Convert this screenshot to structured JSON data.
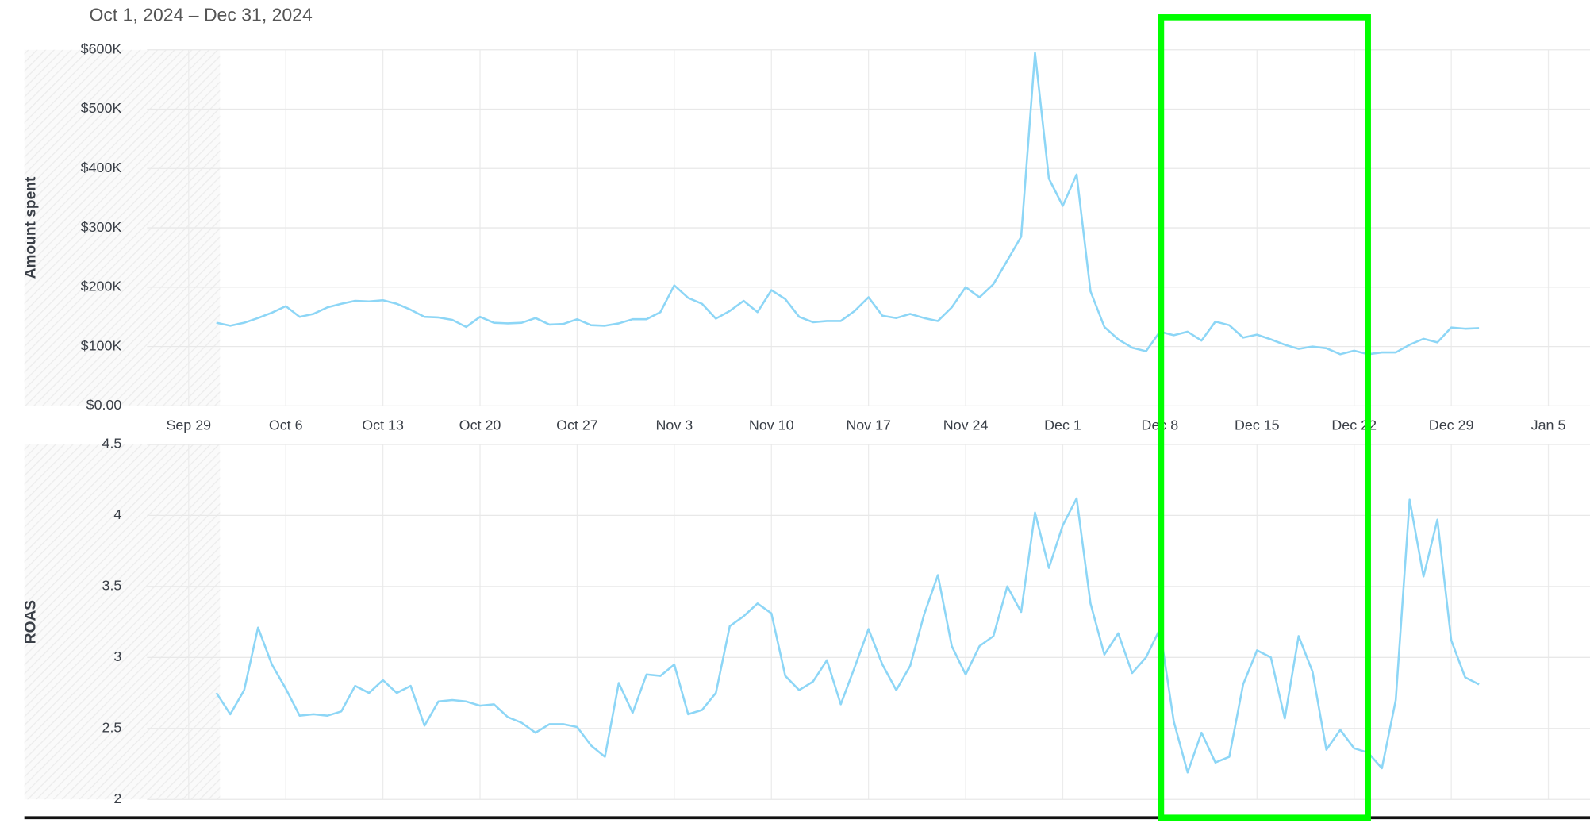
{
  "date_range": "Oct 1, 2024 – Dec 31, 2024",
  "chart_data": [
    {
      "type": "line",
      "y_label": "Amount spent",
      "x": [
        "2024-10-01",
        "2024-10-02",
        "2024-10-03",
        "2024-10-04",
        "2024-10-05",
        "2024-10-06",
        "2024-10-07",
        "2024-10-08",
        "2024-10-09",
        "2024-10-10",
        "2024-10-11",
        "2024-10-12",
        "2024-10-13",
        "2024-10-14",
        "2024-10-15",
        "2024-10-16",
        "2024-10-17",
        "2024-10-18",
        "2024-10-19",
        "2024-10-20",
        "2024-10-21",
        "2024-10-22",
        "2024-10-23",
        "2024-10-24",
        "2024-10-25",
        "2024-10-26",
        "2024-10-27",
        "2024-10-28",
        "2024-10-29",
        "2024-10-30",
        "2024-10-31",
        "2024-11-01",
        "2024-11-02",
        "2024-11-03",
        "2024-11-04",
        "2024-11-05",
        "2024-11-06",
        "2024-11-07",
        "2024-11-08",
        "2024-11-09",
        "2024-11-10",
        "2024-11-11",
        "2024-11-12",
        "2024-11-13",
        "2024-11-14",
        "2024-11-15",
        "2024-11-16",
        "2024-11-17",
        "2024-11-18",
        "2024-11-19",
        "2024-11-20",
        "2024-11-21",
        "2024-11-22",
        "2024-11-23",
        "2024-11-24",
        "2024-11-25",
        "2024-11-26",
        "2024-11-27",
        "2024-11-28",
        "2024-11-29",
        "2024-11-30",
        "2024-12-01",
        "2024-12-02",
        "2024-12-03",
        "2024-12-04",
        "2024-12-05",
        "2024-12-06",
        "2024-12-07",
        "2024-12-08",
        "2024-12-09",
        "2024-12-10",
        "2024-12-11",
        "2024-12-12",
        "2024-12-13",
        "2024-12-14",
        "2024-12-15",
        "2024-12-16",
        "2024-12-17",
        "2024-12-18",
        "2024-12-19",
        "2024-12-20",
        "2024-12-21",
        "2024-12-22",
        "2024-12-23",
        "2024-12-24",
        "2024-12-25",
        "2024-12-26",
        "2024-12-27",
        "2024-12-28",
        "2024-12-29",
        "2024-12-30",
        "2024-12-31"
      ],
      "series": [
        {
          "color": "#8dd6f6",
          "values": [
            140000,
            135000,
            140000,
            148000,
            157000,
            168000,
            150000,
            155000,
            166000,
            172000,
            177000,
            176000,
            178000,
            172000,
            162000,
            150000,
            149000,
            145000,
            133000,
            150000,
            140000,
            139000,
            140000,
            148000,
            137000,
            138000,
            146000,
            136000,
            135000,
            139000,
            146000,
            146000,
            158000,
            203000,
            182000,
            172000,
            147000,
            160000,
            177000,
            158000,
            195000,
            180000,
            150000,
            141000,
            143000,
            143000,
            160000,
            183000,
            152000,
            148000,
            155000,
            148000,
            143000,
            166000,
            200000,
            183000,
            205000,
            245000,
            285000,
            595000,
            383000,
            337000,
            390000,
            193000,
            133000,
            112000,
            98000,
            92000,
            125000,
            119000,
            125000,
            110000,
            142000,
            136000,
            115000,
            120000,
            112000,
            103000,
            96000,
            100000,
            97000,
            87000,
            93000,
            87000,
            90000,
            90000,
            103000,
            113000,
            107000,
            132000,
            130000,
            131000
          ]
        }
      ],
      "xlim": [
        "2024-09-26",
        "2025-01-08"
      ],
      "xticks": [
        {
          "value": "2024-09-29",
          "label": "Sep 29"
        },
        {
          "value": "2024-10-06",
          "label": "Oct 6"
        },
        {
          "value": "2024-10-13",
          "label": "Oct 13"
        },
        {
          "value": "2024-10-20",
          "label": "Oct 20"
        },
        {
          "value": "2024-10-27",
          "label": "Oct 27"
        },
        {
          "value": "2024-11-03",
          "label": "Nov 3"
        },
        {
          "value": "2024-11-10",
          "label": "Nov 10"
        },
        {
          "value": "2024-11-17",
          "label": "Nov 17"
        },
        {
          "value": "2024-11-24",
          "label": "Nov 24"
        },
        {
          "value": "2024-12-01",
          "label": "Dec 1"
        },
        {
          "value": "2024-12-08",
          "label": "Dec 8"
        },
        {
          "value": "2024-12-15",
          "label": "Dec 15"
        },
        {
          "value": "2024-12-22",
          "label": "Dec 22"
        },
        {
          "value": "2024-12-29",
          "label": "Dec 29"
        },
        {
          "value": "2025-01-05",
          "label": "Jan 5"
        }
      ],
      "ylim": [
        0,
        600000
      ],
      "yticks": [
        {
          "value": 0,
          "label": "$0.00"
        },
        {
          "value": 100000,
          "label": "$100K"
        },
        {
          "value": 200000,
          "label": "$200K"
        },
        {
          "value": 300000,
          "label": "$300K"
        },
        {
          "value": 400000,
          "label": "$400K"
        },
        {
          "value": 500000,
          "label": "$500K"
        },
        {
          "value": 600000,
          "label": "$600K"
        }
      ],
      "grid": true
    },
    {
      "type": "line",
      "y_label": "ROAS",
      "x": [
        "2024-10-01",
        "2024-10-02",
        "2024-10-03",
        "2024-10-04",
        "2024-10-05",
        "2024-10-06",
        "2024-10-07",
        "2024-10-08",
        "2024-10-09",
        "2024-10-10",
        "2024-10-11",
        "2024-10-12",
        "2024-10-13",
        "2024-10-14",
        "2024-10-15",
        "2024-10-16",
        "2024-10-17",
        "2024-10-18",
        "2024-10-19",
        "2024-10-20",
        "2024-10-21",
        "2024-10-22",
        "2024-10-23",
        "2024-10-24",
        "2024-10-25",
        "2024-10-26",
        "2024-10-27",
        "2024-10-28",
        "2024-10-29",
        "2024-10-30",
        "2024-10-31",
        "2024-11-01",
        "2024-11-02",
        "2024-11-03",
        "2024-11-04",
        "2024-11-05",
        "2024-11-06",
        "2024-11-07",
        "2024-11-08",
        "2024-11-09",
        "2024-11-10",
        "2024-11-11",
        "2024-11-12",
        "2024-11-13",
        "2024-11-14",
        "2024-11-15",
        "2024-11-16",
        "2024-11-17",
        "2024-11-18",
        "2024-11-19",
        "2024-11-20",
        "2024-11-21",
        "2024-11-22",
        "2024-11-23",
        "2024-11-24",
        "2024-11-25",
        "2024-11-26",
        "2024-11-27",
        "2024-11-28",
        "2024-11-29",
        "2024-11-30",
        "2024-12-01",
        "2024-12-02",
        "2024-12-03",
        "2024-12-04",
        "2024-12-05",
        "2024-12-06",
        "2024-12-07",
        "2024-12-08",
        "2024-12-09",
        "2024-12-10",
        "2024-12-11",
        "2024-12-12",
        "2024-12-13",
        "2024-12-14",
        "2024-12-15",
        "2024-12-16",
        "2024-12-17",
        "2024-12-18",
        "2024-12-19",
        "2024-12-20",
        "2024-12-21",
        "2024-12-22",
        "2024-12-23",
        "2024-12-24",
        "2024-12-25",
        "2024-12-26",
        "2024-12-27",
        "2024-12-28",
        "2024-12-29",
        "2024-12-30",
        "2024-12-31"
      ],
      "series": [
        {
          "color": "#8dd6f6",
          "values": [
            2.75,
            2.6,
            2.77,
            3.21,
            2.95,
            2.78,
            2.59,
            2.6,
            2.59,
            2.62,
            2.8,
            2.75,
            2.84,
            2.75,
            2.8,
            2.52,
            2.69,
            2.7,
            2.69,
            2.66,
            2.67,
            2.58,
            2.54,
            2.47,
            2.53,
            2.53,
            2.51,
            2.38,
            2.3,
            2.82,
            2.61,
            2.88,
            2.87,
            2.95,
            2.6,
            2.63,
            2.75,
            3.22,
            3.29,
            3.38,
            3.31,
            2.87,
            2.77,
            2.83,
            2.98,
            2.67,
            2.93,
            3.2,
            2.95,
            2.77,
            2.94,
            3.3,
            3.58,
            3.08,
            2.88,
            3.08,
            3.15,
            3.5,
            3.32,
            4.02,
            3.63,
            3.93,
            4.12,
            3.38,
            3.02,
            3.17,
            2.89,
            3.0,
            3.2,
            2.55,
            2.19,
            2.47,
            2.26,
            2.3,
            2.81,
            3.05,
            3.0,
            2.57,
            3.15,
            2.9,
            2.35,
            2.49,
            2.36,
            2.33,
            2.22,
            2.7,
            4.11,
            3.57,
            3.97,
            3.12,
            2.86,
            2.81
          ]
        }
      ],
      "xlim": [
        "2024-09-26",
        "2025-01-08"
      ],
      "ylim": [
        2,
        4.5
      ],
      "yticks": [
        2,
        2.5,
        3,
        3.5,
        4,
        4.5
      ],
      "grid": true
    }
  ]
}
